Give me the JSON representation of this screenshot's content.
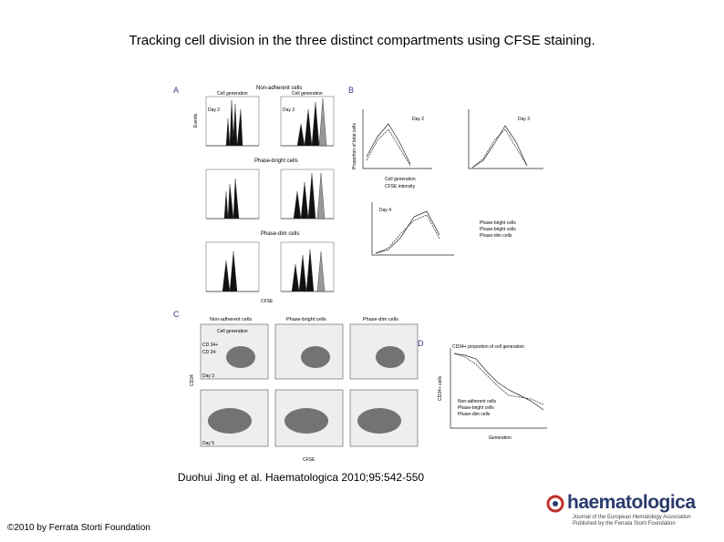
{
  "slide": {
    "title": "Tracking cell division in the three distinct compartments using CFSE staining.",
    "citation": "Duohui Jing et al. Haematologica 2010;95:542-550",
    "copyright": "©2010 by Ferrata Storti Foundation"
  },
  "logo": {
    "name": "haematologica",
    "line1": "Journal of the European Hematology Association",
    "line2": "Published by the Ferrata Storti Foundation"
  },
  "figure": {
    "panel_A": {
      "label": "A",
      "nonadherent": "Non-adherent cells",
      "phase_bright": "Phase-bright cells",
      "phase_dim": "Phase-dim cells",
      "cell_generation": "Cell generation",
      "day2": "Day 2",
      "day3": "Day 3",
      "events": "Events",
      "cfse": "CFSE"
    },
    "panel_B": {
      "label": "B",
      "day2": "Day 2",
      "day3": "Day 3",
      "day4": "Day 4",
      "ylabel": "Proportion of total cells",
      "xlabel1": "Cell generation",
      "xlabel2": "CFSE intensity",
      "legend": [
        "Phase-bright cells",
        "Phase-bright cells",
        "Phase-dim cells"
      ]
    },
    "panel_C": {
      "label": "C",
      "cols": [
        "Non-adherent cells",
        "Phase-bright cells",
        "Phase-dim cells"
      ],
      "cell_generation": "Cell generation",
      "cd34pos": "CD 34+",
      "cd34neg": "CD 34-",
      "day3": "Day 3",
      "day5": "Day 5",
      "ylabel": "CD34",
      "xlabel": "CFSE"
    },
    "panel_D": {
      "label": "D",
      "title": "CD34+ proportion of cell generation",
      "ylabel": "CD34+ cells",
      "xlabel": "Generation",
      "legend": [
        "Non-adherent cells",
        "Phase-bright cells",
        "Phase-dim cells"
      ]
    }
  }
}
